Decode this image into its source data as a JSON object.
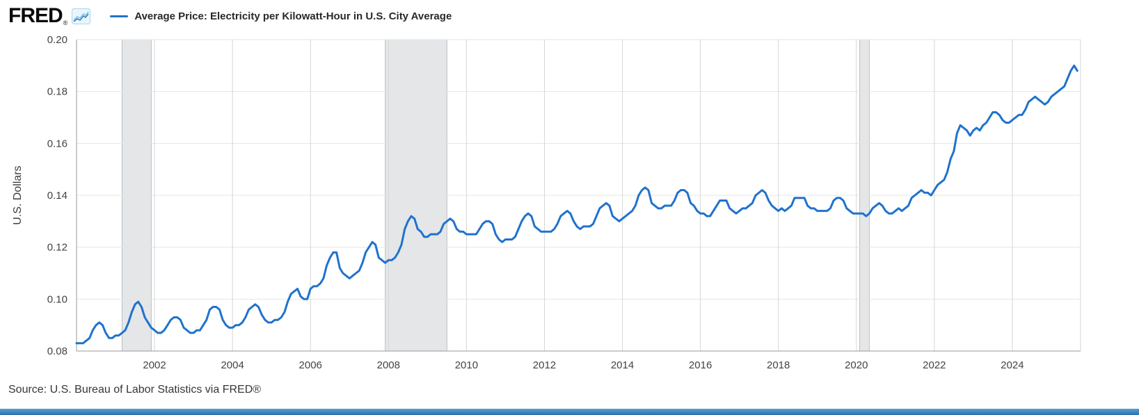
{
  "header": {
    "logo_text": "FRED",
    "registered_mark": "®",
    "legend_label": "Average Price: Electricity per Kilowatt-Hour in U.S. City Average"
  },
  "footer": {
    "source_text": "Source: U.S. Bureau of Labor Statistics via FRED®"
  },
  "colors": {
    "line": "#1f72cd",
    "recession": "#e4e6e8",
    "recession_edge": "#bcc0c3",
    "grid": "#e4e4e4",
    "grid_vertical": "#d6d6d6",
    "axis": "#989898",
    "tick_text": "#434343",
    "footer_bar": "#2a6fa8"
  },
  "chart_data": {
    "type": "line",
    "title": "Average Price: Electricity per Kilowatt-Hour in U.S. City Average",
    "xlabel": "",
    "ylabel": "U.S. Dollars",
    "frequency": "monthly",
    "x_domain": [
      2000,
      2025.75
    ],
    "ylim": [
      0.08,
      0.2
    ],
    "y_ticks": [
      0.08,
      0.1,
      0.12,
      0.14,
      0.16,
      0.18,
      0.2
    ],
    "x_ticks": [
      2002,
      2004,
      2006,
      2008,
      2010,
      2012,
      2014,
      2016,
      2018,
      2020,
      2022,
      2024
    ],
    "grid": true,
    "legend_position": "top-left",
    "recessions": [
      [
        2001.167,
        2001.917
      ],
      [
        2007.917,
        2009.5
      ],
      [
        2020.083,
        2020.333
      ]
    ],
    "series": [
      {
        "name": "Average Price: Electricity per Kilowatt-Hour in U.S. City Average",
        "start": "2000-01",
        "values": [
          0.083,
          0.083,
          0.083,
          0.084,
          0.085,
          0.088,
          0.09,
          0.091,
          0.09,
          0.087,
          0.085,
          0.085,
          0.086,
          0.086,
          0.087,
          0.088,
          0.091,
          0.095,
          0.098,
          0.099,
          0.097,
          0.093,
          0.091,
          0.089,
          0.088,
          0.087,
          0.087,
          0.088,
          0.09,
          0.092,
          0.093,
          0.093,
          0.092,
          0.089,
          0.088,
          0.087,
          0.087,
          0.088,
          0.088,
          0.09,
          0.092,
          0.096,
          0.097,
          0.097,
          0.096,
          0.092,
          0.09,
          0.089,
          0.089,
          0.09,
          0.09,
          0.091,
          0.093,
          0.096,
          0.097,
          0.098,
          0.097,
          0.094,
          0.092,
          0.091,
          0.091,
          0.092,
          0.092,
          0.093,
          0.095,
          0.099,
          0.102,
          0.103,
          0.104,
          0.101,
          0.1,
          0.1,
          0.104,
          0.105,
          0.105,
          0.106,
          0.108,
          0.113,
          0.116,
          0.118,
          0.118,
          0.112,
          0.11,
          0.109,
          0.108,
          0.109,
          0.11,
          0.111,
          0.114,
          0.118,
          0.12,
          0.122,
          0.121,
          0.116,
          0.115,
          0.114,
          0.115,
          0.115,
          0.116,
          0.118,
          0.121,
          0.127,
          0.13,
          0.132,
          0.131,
          0.127,
          0.126,
          0.124,
          0.124,
          0.125,
          0.125,
          0.125,
          0.126,
          0.129,
          0.13,
          0.131,
          0.13,
          0.127,
          0.126,
          0.126,
          0.125,
          0.125,
          0.125,
          0.125,
          0.127,
          0.129,
          0.13,
          0.13,
          0.129,
          0.125,
          0.123,
          0.122,
          0.123,
          0.123,
          0.123,
          0.124,
          0.127,
          0.13,
          0.132,
          0.133,
          0.132,
          0.128,
          0.127,
          0.126,
          0.126,
          0.126,
          0.126,
          0.127,
          0.129,
          0.132,
          0.133,
          0.134,
          0.133,
          0.13,
          0.128,
          0.127,
          0.128,
          0.128,
          0.128,
          0.129,
          0.132,
          0.135,
          0.136,
          0.137,
          0.136,
          0.132,
          0.131,
          0.13,
          0.131,
          0.132,
          0.133,
          0.134,
          0.136,
          0.14,
          0.142,
          0.143,
          0.142,
          0.137,
          0.136,
          0.135,
          0.135,
          0.136,
          0.136,
          0.136,
          0.138,
          0.141,
          0.142,
          0.142,
          0.141,
          0.137,
          0.136,
          0.134,
          0.133,
          0.133,
          0.132,
          0.132,
          0.134,
          0.136,
          0.138,
          0.138,
          0.138,
          0.135,
          0.134,
          0.133,
          0.134,
          0.135,
          0.135,
          0.136,
          0.137,
          0.14,
          0.141,
          0.142,
          0.141,
          0.138,
          0.136,
          0.135,
          0.134,
          0.135,
          0.134,
          0.135,
          0.136,
          0.139,
          0.139,
          0.139,
          0.139,
          0.136,
          0.135,
          0.135,
          0.134,
          0.134,
          0.134,
          0.134,
          0.135,
          0.138,
          0.139,
          0.139,
          0.138,
          0.135,
          0.134,
          0.133,
          0.133,
          0.133,
          0.133,
          0.132,
          0.133,
          0.135,
          0.136,
          0.137,
          0.136,
          0.134,
          0.133,
          0.133,
          0.134,
          0.135,
          0.134,
          0.135,
          0.136,
          0.139,
          0.14,
          0.141,
          0.142,
          0.141,
          0.141,
          0.14,
          0.142,
          0.144,
          0.145,
          0.146,
          0.149,
          0.154,
          0.157,
          0.164,
          0.167,
          0.166,
          0.165,
          0.163,
          0.165,
          0.166,
          0.165,
          0.167,
          0.168,
          0.17,
          0.172,
          0.172,
          0.171,
          0.169,
          0.168,
          0.168,
          0.169,
          0.17,
          0.171,
          0.171,
          0.173,
          0.176,
          0.177,
          0.178,
          0.177,
          0.176,
          0.175,
          0.176,
          0.178,
          0.179,
          0.18,
          0.181,
          0.182,
          0.185,
          0.188,
          0.19,
          0.188
        ]
      }
    ]
  }
}
